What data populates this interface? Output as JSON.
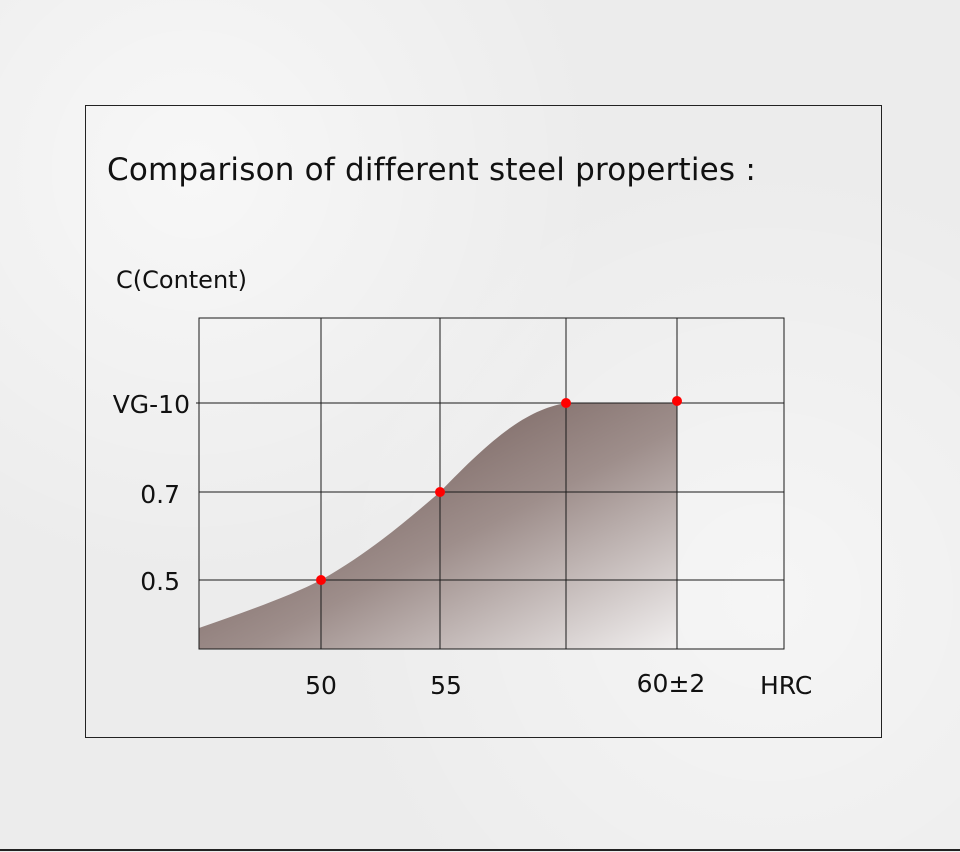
{
  "title": "Comparison of different steel properties :",
  "chart_data": {
    "type": "area",
    "title": "Comparison of different steel properties :",
    "ylabel": "C(Content)",
    "xlabel": "HRC",
    "x_tick_labels": [
      "50",
      "55",
      "60±2"
    ],
    "y_tick_labels": [
      "0.5",
      "0.7",
      "VG-10"
    ],
    "points": [
      {
        "x": "50",
        "y": "0.5"
      },
      {
        "x": "55",
        "y": "0.7"
      },
      {
        "x": "",
        "y": "VG-10"
      },
      {
        "x": "60±2",
        "y": "VG-10"
      }
    ],
    "grid": true,
    "marker_color": "#ff0000",
    "fill_top_color": "#5e4642",
    "fill_bottom_color": "#f2f0f0"
  }
}
